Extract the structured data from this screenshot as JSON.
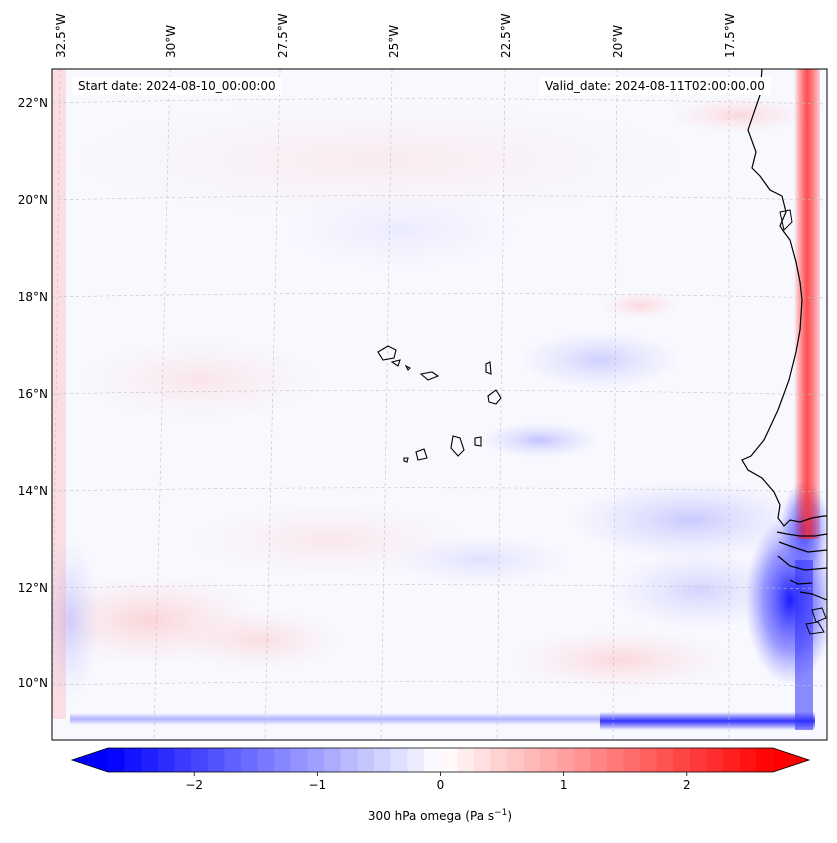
{
  "map": {
    "start_date_label": "Start date: 2024-08-10_00:00:00",
    "valid_date_label": "Valid_date: 2024-08-11T02:00:00.00",
    "lon_ticks": [
      "32.5°W",
      "30°W",
      "27.5°W",
      "25°W",
      "22.5°W",
      "20°W",
      "17.5°W"
    ],
    "lat_ticks": [
      "22°N",
      "20°N",
      "18°N",
      "16°N",
      "14°N",
      "12°N",
      "10°N"
    ],
    "field": "omega",
    "level": "300 hPa"
  },
  "colorbar": {
    "label": "300 hPa omega (Pa s",
    "label_superscript": "−1",
    "label_close": ")",
    "ticks": [
      "−2",
      "−1",
      "0",
      "1",
      "2"
    ],
    "tick_values": [
      -2,
      -1,
      0,
      1,
      2
    ],
    "vmin": -2.7,
    "vmax": 2.7,
    "colormap": "bwr",
    "low_color": "#0000ff",
    "mid_color": "#ffffff",
    "high_color": "#ff0000"
  },
  "chart_data": {
    "type": "heatmap",
    "title": "",
    "variable": "300 hPa omega (Pa s−1)",
    "x_range_lon": [
      -33.0,
      -15.8
    ],
    "y_range_lat": [
      8.9,
      22.8
    ],
    "color_range": [
      -2.7,
      2.7
    ]
  }
}
